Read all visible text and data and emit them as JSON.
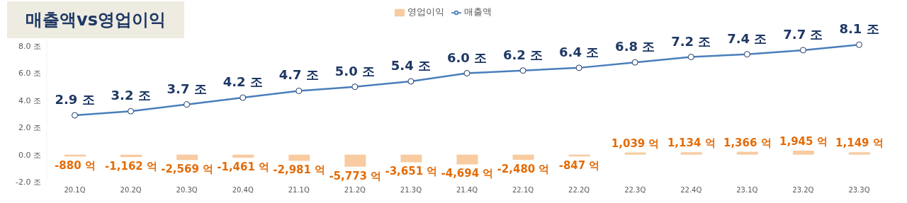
{
  "chart_data": {
    "type": "bar",
    "title": "매출액vs영업이익",
    "categories": [
      "20.1Q",
      "20.2Q",
      "20.3Q",
      "20.4Q",
      "21.1Q",
      "21.2Q",
      "21.3Q",
      "21.4Q",
      "22.1Q",
      "22.2Q",
      "22.3Q",
      "22.4Q",
      "23.1Q",
      "23.2Q",
      "23.3Q"
    ],
    "series": [
      {
        "name": "영업이익",
        "axis": "y2",
        "color": "#f8cba0",
        "values": [
          -880,
          -1162,
          -2569,
          -1461,
          -2981,
          -5773,
          -3651,
          -4694,
          -2480,
          -847,
          1039,
          1134,
          1366,
          1945,
          1149
        ],
        "value_labels": [
          "-880 억",
          "-1,162 억",
          "-2,569 억",
          "-1,461 억",
          "-2,981 억",
          "-5,773 억",
          "-3,651 억",
          "-4,694 억",
          "-2,480 억",
          "-847 억",
          "1,039 억",
          "1,134 억",
          "1,366 억",
          "1,945 억",
          "1,149 억"
        ]
      },
      {
        "name": "매출액",
        "type": "line",
        "color": "#4a7ebb",
        "marker": "circle",
        "values": [
          2.9,
          3.2,
          3.7,
          4.2,
          4.7,
          5.0,
          5.4,
          6.0,
          6.2,
          6.4,
          6.8,
          7.2,
          7.4,
          7.7,
          8.1
        ],
        "value_labels": [
          "2.9 조",
          "3.2 조",
          "3.7 조",
          "4.2 조",
          "4.7 조",
          "5.0 조",
          "5.4 조",
          "6.0 조",
          "6.2 조",
          "6.4 조",
          "6.8 조",
          "7.2 조",
          "7.4 조",
          "7.7 조",
          "8.1 조"
        ]
      }
    ],
    "ylim": [
      -2,
      9
    ],
    "yticks": [
      {
        "value": -2,
        "label": "-2.0 조"
      },
      {
        "value": 0,
        "label": "0.0 조"
      },
      {
        "value": 2,
        "label": "2.0 조"
      },
      {
        "value": 4,
        "label": "4.0 조"
      },
      {
        "value": 6,
        "label": "6.0 조"
      },
      {
        "value": 8,
        "label": "8.0 조"
      }
    ],
    "y2lim": [
      -13000,
      58500
    ],
    "grid": false,
    "legend": "top"
  }
}
